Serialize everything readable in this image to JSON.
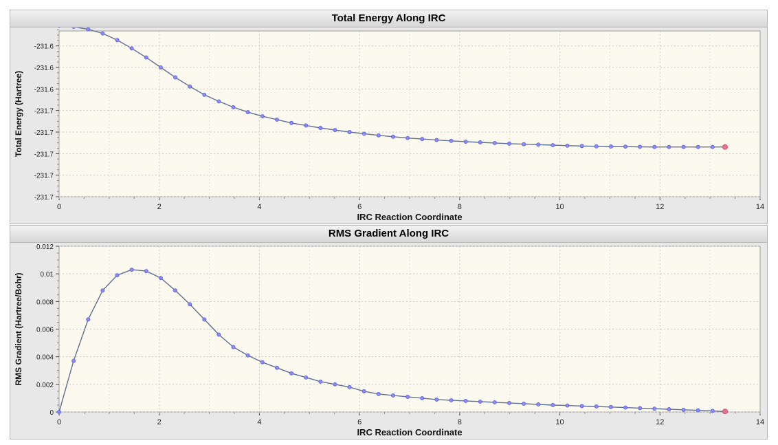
{
  "chart_data": [
    {
      "type": "line",
      "title": "Total Energy Along IRC",
      "xlabel": "IRC Reaction Coordinate",
      "ylabel": "Total Energy (Hartree)",
      "xlim": [
        0,
        14
      ],
      "xticks": [
        0,
        2,
        4,
        6,
        8,
        10,
        12,
        14
      ],
      "ylim": [
        -231.7,
        -231.6
      ],
      "yticks": [
        -231.7,
        -231.687,
        -231.674,
        -231.661,
        -231.648,
        -231.635,
        -231.622,
        -231.609,
        -231.596
      ],
      "ytick_labels": [
        "-231.7",
        "-231.7",
        "-231.7",
        "-231.7",
        "-231.7",
        "-231.6",
        "-231.6",
        "-231.6",
        "-231.6"
      ],
      "grid": true,
      "series": [
        {
          "x": [
            0,
            0.29,
            0.58,
            0.87,
            1.16,
            1.45,
            1.74,
            2.03,
            2.32,
            2.61,
            2.9,
            3.19,
            3.48,
            3.77,
            4.06,
            4.35,
            4.64,
            4.93,
            5.22,
            5.51,
            5.8,
            6.09,
            6.38,
            6.67,
            6.96,
            7.25,
            7.54,
            7.83,
            8.12,
            8.41,
            8.7,
            8.99,
            9.28,
            9.57,
            9.86,
            10.15,
            10.44,
            10.73,
            11.02,
            11.31,
            11.6,
            11.89,
            12.18,
            12.47,
            12.76,
            13.05,
            13.3
          ],
          "values": [
            -231.597,
            -231.5975,
            -231.599,
            -231.6015,
            -231.6055,
            -231.6105,
            -231.616,
            -231.622,
            -231.628,
            -231.6335,
            -231.6385,
            -231.6425,
            -231.646,
            -231.649,
            -231.6515,
            -231.6535,
            -231.6555,
            -231.657,
            -231.6585,
            -231.6598,
            -231.661,
            -231.662,
            -231.663,
            -231.6638,
            -231.6646,
            -231.6652,
            -231.6658,
            -231.6663,
            -231.6668,
            -231.6672,
            -231.6676,
            -231.668,
            -231.6683,
            -231.6686,
            -231.6689,
            -231.6692,
            -231.6694,
            -231.6696,
            -231.6697,
            -231.6698,
            -231.6699,
            -231.67,
            -231.67,
            -231.67,
            -231.67,
            -231.67,
            -231.67
          ]
        }
      ]
    },
    {
      "type": "line",
      "title": "RMS Gradient Along IRC",
      "xlabel": "IRC Reaction Coordinate",
      "ylabel": "RMS Gradient (Hartree/Bohr)",
      "xlim": [
        0,
        14
      ],
      "xticks": [
        0,
        2,
        4,
        6,
        8,
        10,
        12,
        14
      ],
      "ylim": [
        0,
        0.012
      ],
      "yticks": [
        0,
        0.002,
        0.004,
        0.006,
        0.008,
        0.01,
        0.012
      ],
      "ytick_labels": [
        "0",
        "0.002",
        "0.004",
        "0.006",
        "0.008",
        "0.01",
        "0.012"
      ],
      "grid": true,
      "series": [
        {
          "x": [
            0,
            0.29,
            0.58,
            0.87,
            1.16,
            1.45,
            1.74,
            2.03,
            2.32,
            2.61,
            2.9,
            3.19,
            3.48,
            3.77,
            4.06,
            4.35,
            4.64,
            4.93,
            5.22,
            5.51,
            5.8,
            6.09,
            6.38,
            6.67,
            6.96,
            7.25,
            7.54,
            7.83,
            8.12,
            8.41,
            8.7,
            8.99,
            9.28,
            9.57,
            9.86,
            10.15,
            10.44,
            10.73,
            11.02,
            11.31,
            11.6,
            11.89,
            12.18,
            12.47,
            12.76,
            13.05,
            13.3
          ],
          "values": [
            0,
            0.0037,
            0.0067,
            0.0088,
            0.0099,
            0.0103,
            0.0102,
            0.0097,
            0.0088,
            0.0078,
            0.0067,
            0.0056,
            0.0047,
            0.0041,
            0.0036,
            0.0032,
            0.0028,
            0.0025,
            0.0022,
            0.002,
            0.0018,
            0.0015,
            0.0013,
            0.0012,
            0.0011,
            0.001,
            0.0009,
            0.00085,
            0.0008,
            0.00075,
            0.0007,
            0.00065,
            0.0006,
            0.00055,
            0.0005,
            0.00047,
            0.00043,
            0.0004,
            0.00036,
            0.00032,
            0.00028,
            0.00024,
            0.0002,
            0.00016,
            0.00012,
            8e-05,
            4e-05
          ]
        }
      ]
    }
  ]
}
